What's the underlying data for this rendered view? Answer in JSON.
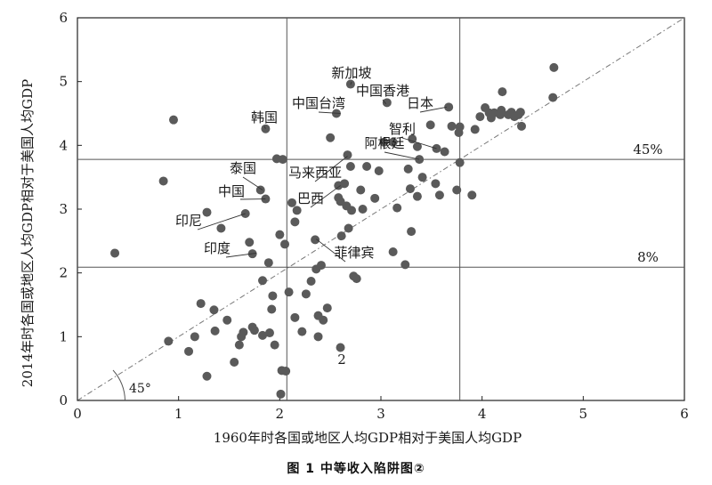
{
  "chart_data": {
    "type": "scatter",
    "xlabel": "1960年时各国或地区人均GDP相对于美国人均GDP",
    "ylabel": "2014年时各国或地区人均GDP相对于美国人均GDP",
    "xlim": [
      0,
      6
    ],
    "ylim": [
      0,
      6
    ],
    "xticks": [
      0,
      1,
      2,
      3,
      4,
      5,
      6
    ],
    "yticks": [
      0,
      1,
      2,
      3,
      4,
      5,
      6
    ],
    "grid": false,
    "reference_lines": {
      "vertical": [
        2.07,
        3.78
      ],
      "horizontal": [
        {
          "y": 3.78,
          "label": "45%"
        },
        {
          "y": 2.09,
          "label": "8%"
        }
      ],
      "diagonal": {
        "from": [
          0,
          0
        ],
        "to": [
          6,
          6
        ],
        "angle_label": "45°"
      }
    },
    "annotations": [
      {
        "text": "新加坡",
        "point": [
          2.7,
          4.95
        ]
      },
      {
        "text": "中国香港",
        "point": [
          3.05,
          4.65
        ]
      },
      {
        "text": "中国台湾",
        "point": [
          2.6,
          4.5
        ]
      },
      {
        "text": "日本",
        "point": [
          3.65,
          4.6
        ]
      },
      {
        "text": "韩国",
        "point": [
          1.86,
          4.26
        ]
      },
      {
        "text": "智利",
        "point": [
          3.55,
          3.95
        ]
      },
      {
        "text": "阿根廷",
        "point": [
          3.38,
          3.78
        ]
      },
      {
        "text": "马来西亚",
        "point": [
          2.67,
          3.83
        ]
      },
      {
        "text": "泰国",
        "point": [
          1.83,
          3.3
        ]
      },
      {
        "text": "中国",
        "point": [
          1.86,
          3.16
        ]
      },
      {
        "text": "巴西",
        "point": [
          2.6,
          3.37
        ]
      },
      {
        "text": "印尼",
        "point": [
          1.66,
          2.93
        ]
      },
      {
        "text": "印度",
        "point": [
          1.77,
          2.31
        ]
      },
      {
        "text": "菲律宾",
        "point": [
          2.36,
          2.53
        ]
      },
      {
        "text": "2",
        "point": null
      }
    ],
    "series": [
      {
        "points": [
          [
            0.37,
            2.31
          ],
          [
            0.85,
            3.44
          ],
          [
            0.95,
            4.4
          ],
          [
            0.9,
            0.93
          ],
          [
            1.1,
            0.77
          ],
          [
            1.16,
            1.0
          ],
          [
            1.22,
            1.52
          ],
          [
            1.28,
            0.38
          ],
          [
            1.28,
            2.95
          ],
          [
            1.35,
            1.42
          ],
          [
            1.36,
            1.09
          ],
          [
            1.42,
            2.7
          ],
          [
            1.48,
            1.26
          ],
          [
            1.55,
            0.6
          ],
          [
            1.6,
            0.87
          ],
          [
            1.62,
            1.0
          ],
          [
            1.64,
            1.07
          ],
          [
            1.66,
            2.93
          ],
          [
            1.7,
            2.48
          ],
          [
            1.73,
            1.15
          ],
          [
            1.73,
            2.3
          ],
          [
            1.75,
            1.1
          ],
          [
            1.81,
            3.3
          ],
          [
            1.83,
            1.88
          ],
          [
            1.83,
            1.02
          ],
          [
            1.86,
            3.16
          ],
          [
            1.86,
            4.26
          ],
          [
            1.89,
            2.16
          ],
          [
            1.9,
            1.06
          ],
          [
            1.92,
            1.43
          ],
          [
            1.93,
            1.64
          ],
          [
            1.95,
            0.87
          ],
          [
            1.97,
            3.79
          ],
          [
            2.0,
            2.6
          ],
          [
            2.01,
            0.1
          ],
          [
            2.02,
            0.47
          ],
          [
            2.06,
            0.46
          ],
          [
            2.03,
            3.78
          ],
          [
            2.05,
            2.45
          ],
          [
            2.09,
            1.7
          ],
          [
            2.12,
            3.1
          ],
          [
            2.15,
            2.8
          ],
          [
            2.15,
            1.3
          ],
          [
            2.17,
            2.98
          ],
          [
            2.22,
            1.08
          ],
          [
            2.26,
            1.67
          ],
          [
            2.31,
            1.87
          ],
          [
            2.35,
            2.52
          ],
          [
            2.36,
            2.06
          ],
          [
            2.38,
            1.0
          ],
          [
            2.38,
            1.33
          ],
          [
            2.41,
            2.12
          ],
          [
            2.43,
            1.26
          ],
          [
            2.47,
            1.45
          ],
          [
            2.5,
            4.12
          ],
          [
            2.56,
            4.5
          ],
          [
            2.58,
            3.37
          ],
          [
            2.58,
            3.18
          ],
          [
            2.6,
            3.12
          ],
          [
            2.6,
            0.83
          ],
          [
            2.61,
            2.58
          ],
          [
            2.64,
            3.4
          ],
          [
            2.66,
            3.05
          ],
          [
            2.67,
            3.85
          ],
          [
            2.68,
            2.7
          ],
          [
            2.7,
            3.67
          ],
          [
            2.71,
            2.98
          ],
          [
            2.7,
            4.96
          ],
          [
            2.73,
            1.95
          ],
          [
            2.76,
            1.91
          ],
          [
            2.8,
            3.3
          ],
          [
            2.82,
            3.0
          ],
          [
            2.86,
            3.67
          ],
          [
            2.94,
            3.17
          ],
          [
            2.98,
            3.6
          ],
          [
            3.03,
            4.05
          ],
          [
            3.06,
            4.67
          ],
          [
            3.12,
            4.05
          ],
          [
            3.12,
            2.33
          ],
          [
            3.16,
            3.02
          ],
          [
            3.24,
            2.13
          ],
          [
            3.27,
            3.63
          ],
          [
            3.29,
            3.32
          ],
          [
            3.3,
            2.65
          ],
          [
            3.31,
            4.1
          ],
          [
            3.36,
            3.98
          ],
          [
            3.36,
            3.2
          ],
          [
            3.38,
            3.78
          ],
          [
            3.41,
            3.5
          ],
          [
            3.49,
            4.32
          ],
          [
            3.55,
            3.95
          ],
          [
            3.54,
            3.4
          ],
          [
            3.58,
            3.22
          ],
          [
            3.63,
            3.9
          ],
          [
            3.67,
            4.6
          ],
          [
            3.7,
            4.3
          ],
          [
            3.75,
            3.3
          ],
          [
            3.77,
            4.2
          ],
          [
            3.78,
            4.29
          ],
          [
            3.78,
            3.73
          ],
          [
            3.9,
            3.22
          ],
          [
            3.93,
            4.25
          ],
          [
            3.98,
            4.45
          ],
          [
            4.03,
            4.59
          ],
          [
            4.07,
            4.51
          ],
          [
            4.09,
            4.43
          ],
          [
            4.12,
            4.51
          ],
          [
            4.18,
            4.48
          ],
          [
            4.19,
            4.55
          ],
          [
            4.2,
            4.84
          ],
          [
            4.26,
            4.48
          ],
          [
            4.29,
            4.52
          ],
          [
            4.32,
            4.45
          ],
          [
            4.36,
            4.48
          ],
          [
            4.39,
            4.3
          ],
          [
            4.38,
            4.52
          ],
          [
            4.7,
            4.75
          ],
          [
            4.71,
            5.22
          ]
        ]
      }
    ]
  },
  "caption": "图 1   中等收入陷阱图②"
}
